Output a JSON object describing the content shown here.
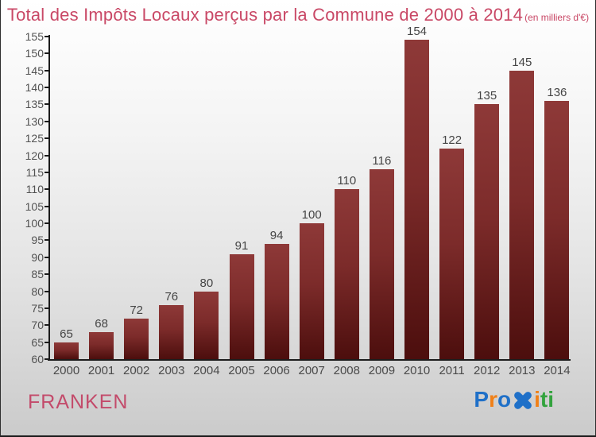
{
  "chart_data": {
    "type": "bar",
    "title": "Total des Impôts Locaux perçus par la Commune de 2000 à 2014",
    "subtitle": "(en milliers d'€)",
    "categories": [
      "2000",
      "2001",
      "2002",
      "2003",
      "2004",
      "2005",
      "2006",
      "2007",
      "2008",
      "2009",
      "2010",
      "2011",
      "2012",
      "2013",
      "2014"
    ],
    "values": [
      65,
      68,
      72,
      76,
      80,
      91,
      94,
      100,
      110,
      116,
      154,
      122,
      135,
      145,
      136
    ],
    "xlabel": "",
    "ylabel": "",
    "ylim": [
      60,
      155
    ],
    "ytick_step": 5,
    "grid": false,
    "legend": "none",
    "value_labels": true,
    "bar_color_top": "#8e3938",
    "bar_color_bottom": "#4c0e0d"
  },
  "footer": {
    "commune": "FRANKEN",
    "logo_letters": [
      {
        "char": "P",
        "color": "#1f70c8"
      },
      {
        "char": "r",
        "color": "#f08018"
      },
      {
        "char": "o",
        "color": "#1f70c8"
      },
      {
        "char": "x",
        "color": "#1f70c8",
        "icon": "x"
      },
      {
        "char": "i",
        "color": "#f08018"
      },
      {
        "char": "t",
        "color": "#33a33e"
      },
      {
        "char": "i",
        "color": "#33a33e"
      }
    ]
  },
  "colors": {
    "title": "#c94866",
    "commune": "#c34b6b",
    "axis": "#1c1c1c",
    "labels": "#4a4a4a",
    "background_top": "#ffffff",
    "background_bottom": "#cbcbcb"
  }
}
